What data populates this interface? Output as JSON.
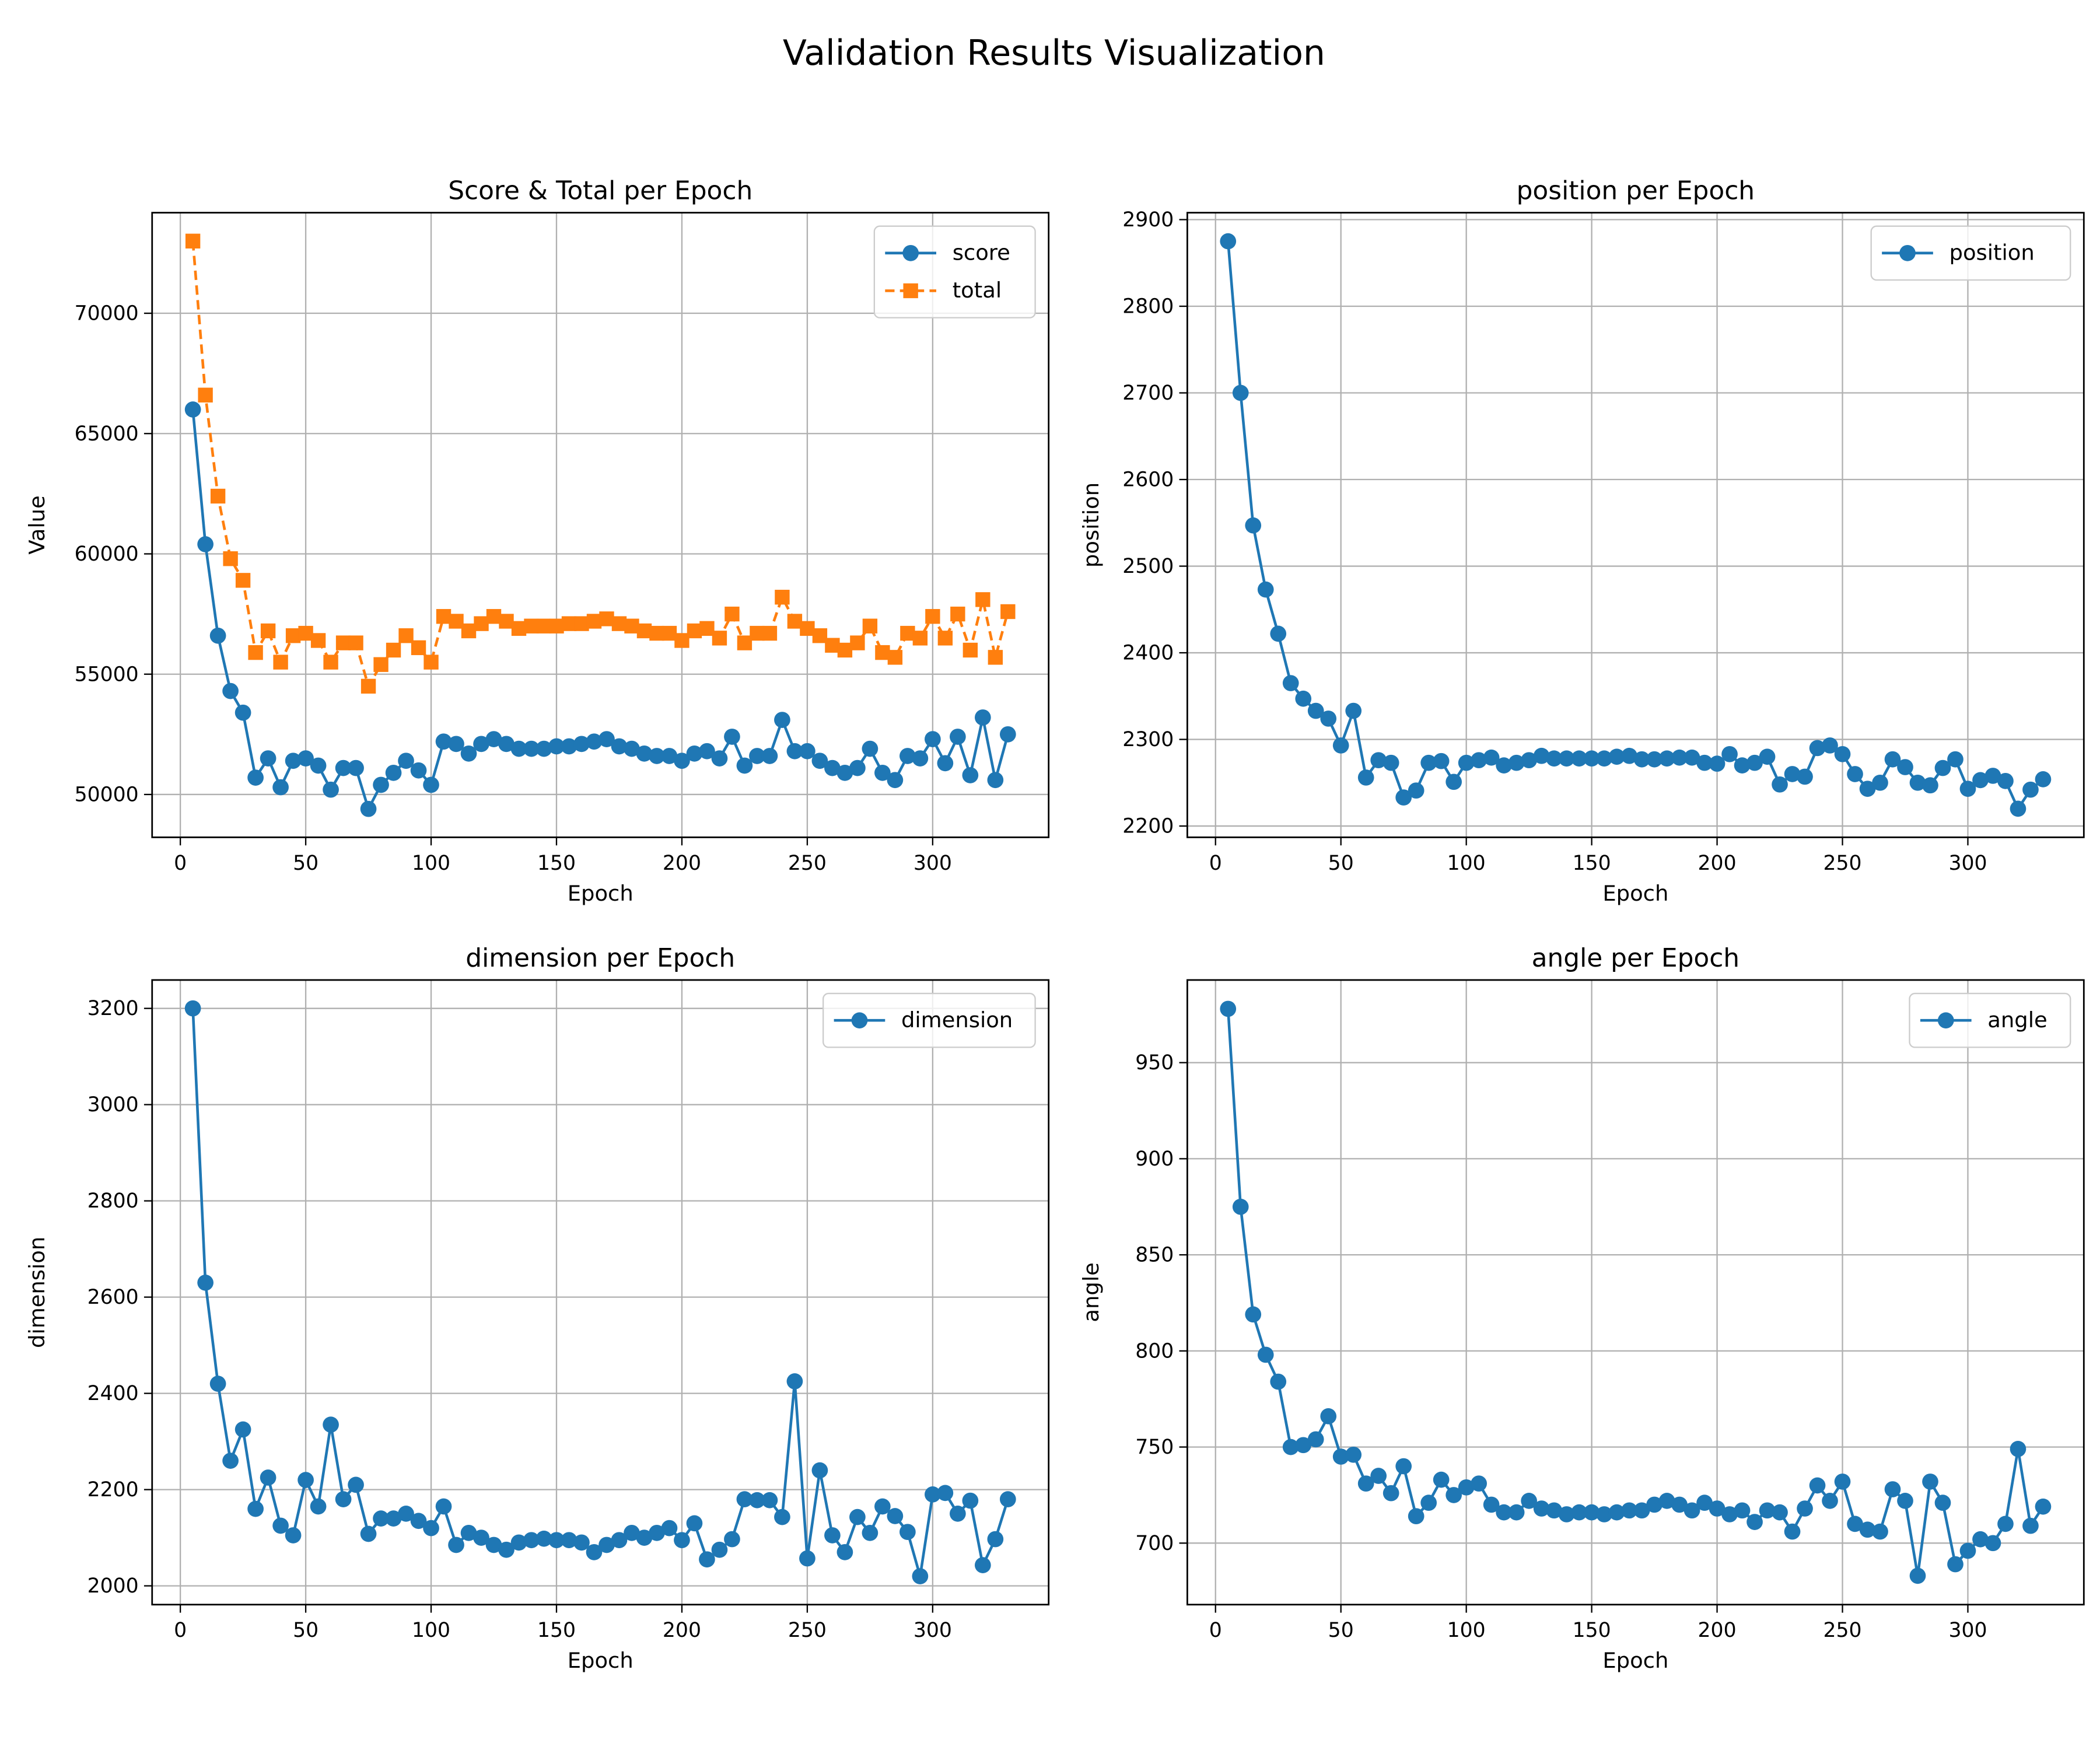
{
  "title": "Validation Results Visualization",
  "chart_data": [
    {
      "type": "line",
      "title": "Score & Total per Epoch",
      "x_label": "Epoch",
      "y_label": "Value",
      "x": [
        5,
        10,
        15,
        20,
        25,
        30,
        35,
        40,
        45,
        50,
        55,
        60,
        65,
        70,
        75,
        80,
        85,
        90,
        95,
        100,
        105,
        110,
        115,
        120,
        125,
        130,
        135,
        140,
        145,
        150,
        155,
        160,
        165,
        170,
        175,
        180,
        185,
        190,
        195,
        200,
        205,
        210,
        215,
        220,
        225,
        230,
        235,
        240,
        245,
        250,
        255,
        260,
        265,
        270,
        275,
        280,
        285,
        290,
        295,
        300,
        305,
        310,
        315,
        320,
        325,
        330
      ],
      "series": [
        {
          "name": "score",
          "color": "#1f77b4",
          "marker": "circle",
          "linestyle": "solid",
          "values": [
            66000,
            60400,
            56600,
            54300,
            53400,
            50700,
            51500,
            50300,
            51400,
            51500,
            51200,
            50200,
            51100,
            51100,
            49400,
            50400,
            50900,
            51400,
            51000,
            50400,
            52200,
            52100,
            51700,
            52100,
            52300,
            52100,
            51900,
            51900,
            51900,
            52000,
            52000,
            52100,
            52200,
            52300,
            52000,
            51900,
            51700,
            51600,
            51600,
            51400,
            51700,
            51800,
            51500,
            52400,
            51200,
            51600,
            51600,
            53100,
            51800,
            51800,
            51400,
            51100,
            50900,
            51100,
            51900,
            50900,
            50600,
            51600,
            51500,
            52300,
            51300,
            52400,
            50800,
            53200,
            50600,
            52500
          ]
        },
        {
          "name": "total",
          "color": "#ff7f0e",
          "marker": "square",
          "linestyle": "dashed",
          "values": [
            73000,
            66600,
            62400,
            59800,
            58900,
            55900,
            56800,
            55500,
            56600,
            56700,
            56400,
            55500,
            56300,
            56300,
            54500,
            55400,
            56000,
            56600,
            56100,
            55500,
            57400,
            57200,
            56800,
            57100,
            57400,
            57200,
            56900,
            57000,
            57000,
            57000,
            57100,
            57100,
            57200,
            57300,
            57100,
            57000,
            56800,
            56700,
            56700,
            56400,
            56800,
            56900,
            56500,
            57500,
            56300,
            56700,
            56700,
            58200,
            57200,
            56900,
            56600,
            56200,
            56000,
            56300,
            57000,
            55900,
            55700,
            56700,
            56500,
            57400,
            56500,
            57500,
            56000,
            58100,
            55700,
            57600
          ]
        }
      ],
      "xlim": [
        -11.25,
        346.25
      ],
      "xticks": [
        0,
        50,
        100,
        150,
        200,
        250,
        300
      ],
      "ylim": [
        48220,
        74180
      ],
      "yticks": [
        50000,
        55000,
        60000,
        65000,
        70000
      ],
      "grid": true,
      "legend": "upper right"
    },
    {
      "type": "line",
      "title": "position per Epoch",
      "x_label": "Epoch",
      "y_label": "position",
      "x": [
        5,
        10,
        15,
        20,
        25,
        30,
        35,
        40,
        45,
        50,
        55,
        60,
        65,
        70,
        75,
        80,
        85,
        90,
        95,
        100,
        105,
        110,
        115,
        120,
        125,
        130,
        135,
        140,
        145,
        150,
        155,
        160,
        165,
        170,
        175,
        180,
        185,
        190,
        195,
        200,
        205,
        210,
        215,
        220,
        225,
        230,
        235,
        240,
        245,
        250,
        255,
        260,
        265,
        270,
        275,
        280,
        285,
        290,
        295,
        300,
        305,
        310,
        315,
        320,
        325,
        330
      ],
      "series": [
        {
          "name": "position",
          "color": "#1f77b4",
          "marker": "circle",
          "linestyle": "solid",
          "values": [
            2875,
            2700,
            2547,
            2473,
            2422,
            2365,
            2347,
            2333,
            2324,
            2293,
            2333,
            2256,
            2276,
            2273,
            2233,
            2241,
            2273,
            2275,
            2251,
            2273,
            2276,
            2279,
            2270,
            2273,
            2276,
            2281,
            2278,
            2278,
            2278,
            2278,
            2278,
            2280,
            2281,
            2277,
            2277,
            2278,
            2279,
            2279,
            2273,
            2272,
            2283,
            2270,
            2273,
            2280,
            2248,
            2260,
            2257,
            2290,
            2293,
            2283,
            2260,
            2243,
            2250,
            2277,
            2268,
            2250,
            2247,
            2267,
            2277,
            2243,
            2253,
            2258,
            2252,
            2220,
            2242,
            2254
          ]
        }
      ],
      "xlim": [
        -11.25,
        346.25
      ],
      "xticks": [
        0,
        50,
        100,
        150,
        200,
        250,
        300
      ],
      "ylim": [
        2187,
        2908
      ],
      "yticks": [
        2200,
        2300,
        2400,
        2500,
        2600,
        2700,
        2800,
        2900
      ],
      "grid": true,
      "legend": "upper right"
    },
    {
      "type": "line",
      "title": "dimension per Epoch",
      "x_label": "Epoch",
      "y_label": "dimension",
      "x": [
        5,
        10,
        15,
        20,
        25,
        30,
        35,
        40,
        45,
        50,
        55,
        60,
        65,
        70,
        75,
        80,
        85,
        90,
        95,
        100,
        105,
        110,
        115,
        120,
        125,
        130,
        135,
        140,
        145,
        150,
        155,
        160,
        165,
        170,
        175,
        180,
        185,
        190,
        195,
        200,
        205,
        210,
        215,
        220,
        225,
        230,
        235,
        240,
        245,
        250,
        255,
        260,
        265,
        270,
        275,
        280,
        285,
        290,
        295,
        300,
        305,
        310,
        315,
        320,
        325,
        330
      ],
      "series": [
        {
          "name": "dimension",
          "color": "#1f77b4",
          "marker": "circle",
          "linestyle": "solid",
          "values": [
            3200,
            2630,
            2420,
            2260,
            2325,
            2160,
            2225,
            2125,
            2105,
            2220,
            2165,
            2335,
            2180,
            2210,
            2108,
            2140,
            2140,
            2150,
            2135,
            2120,
            2165,
            2085,
            2110,
            2100,
            2085,
            2075,
            2090,
            2095,
            2098,
            2095,
            2095,
            2090,
            2070,
            2085,
            2095,
            2110,
            2100,
            2110,
            2120,
            2095,
            2130,
            2055,
            2075,
            2097,
            2180,
            2178,
            2178,
            2143,
            2425,
            2057,
            2240,
            2105,
            2070,
            2143,
            2110,
            2165,
            2145,
            2112,
            2020,
            2190,
            2193,
            2150,
            2177,
            2043,
            2097,
            2180
          ]
        }
      ],
      "xlim": [
        -11.25,
        346.25
      ],
      "xticks": [
        0,
        50,
        100,
        150,
        200,
        250,
        300
      ],
      "ylim": [
        1961,
        3259
      ],
      "yticks": [
        2000,
        2200,
        2400,
        2600,
        2800,
        3000,
        3200
      ],
      "grid": true,
      "legend": "upper right"
    },
    {
      "type": "line",
      "title": "angle per Epoch",
      "x_label": "Epoch",
      "y_label": "angle",
      "x": [
        5,
        10,
        15,
        20,
        25,
        30,
        35,
        40,
        45,
        50,
        55,
        60,
        65,
        70,
        75,
        80,
        85,
        90,
        95,
        100,
        105,
        110,
        115,
        120,
        125,
        130,
        135,
        140,
        145,
        150,
        155,
        160,
        165,
        170,
        175,
        180,
        185,
        190,
        195,
        200,
        205,
        210,
        215,
        220,
        225,
        230,
        235,
        240,
        245,
        250,
        255,
        260,
        265,
        270,
        275,
        280,
        285,
        290,
        295,
        300,
        305,
        310,
        315,
        320,
        325,
        330
      ],
      "series": [
        {
          "name": "angle",
          "color": "#1f77b4",
          "marker": "circle",
          "linestyle": "solid",
          "values": [
            978,
            875,
            819,
            798,
            784,
            750,
            751,
            754,
            766,
            745,
            746,
            731,
            735,
            726,
            740,
            714,
            721,
            733,
            725,
            729,
            731,
            720,
            716,
            716,
            722,
            718,
            717,
            715,
            716,
            716,
            715,
            716,
            717,
            717,
            720,
            722,
            720,
            717,
            721,
            718,
            715,
            717,
            711,
            717,
            716,
            706,
            718,
            730,
            722,
            732,
            710,
            707,
            706,
            728,
            722,
            683,
            732,
            721,
            689,
            696,
            702,
            700,
            710,
            749,
            709,
            719
          ]
        }
      ],
      "xlim": [
        -11.25,
        346.25
      ],
      "xticks": [
        0,
        50,
        100,
        150,
        200,
        250,
        300
      ],
      "ylim": [
        668,
        993
      ],
      "yticks": [
        700,
        750,
        800,
        850,
        900,
        950
      ],
      "grid": true,
      "legend": "upper right"
    }
  ]
}
